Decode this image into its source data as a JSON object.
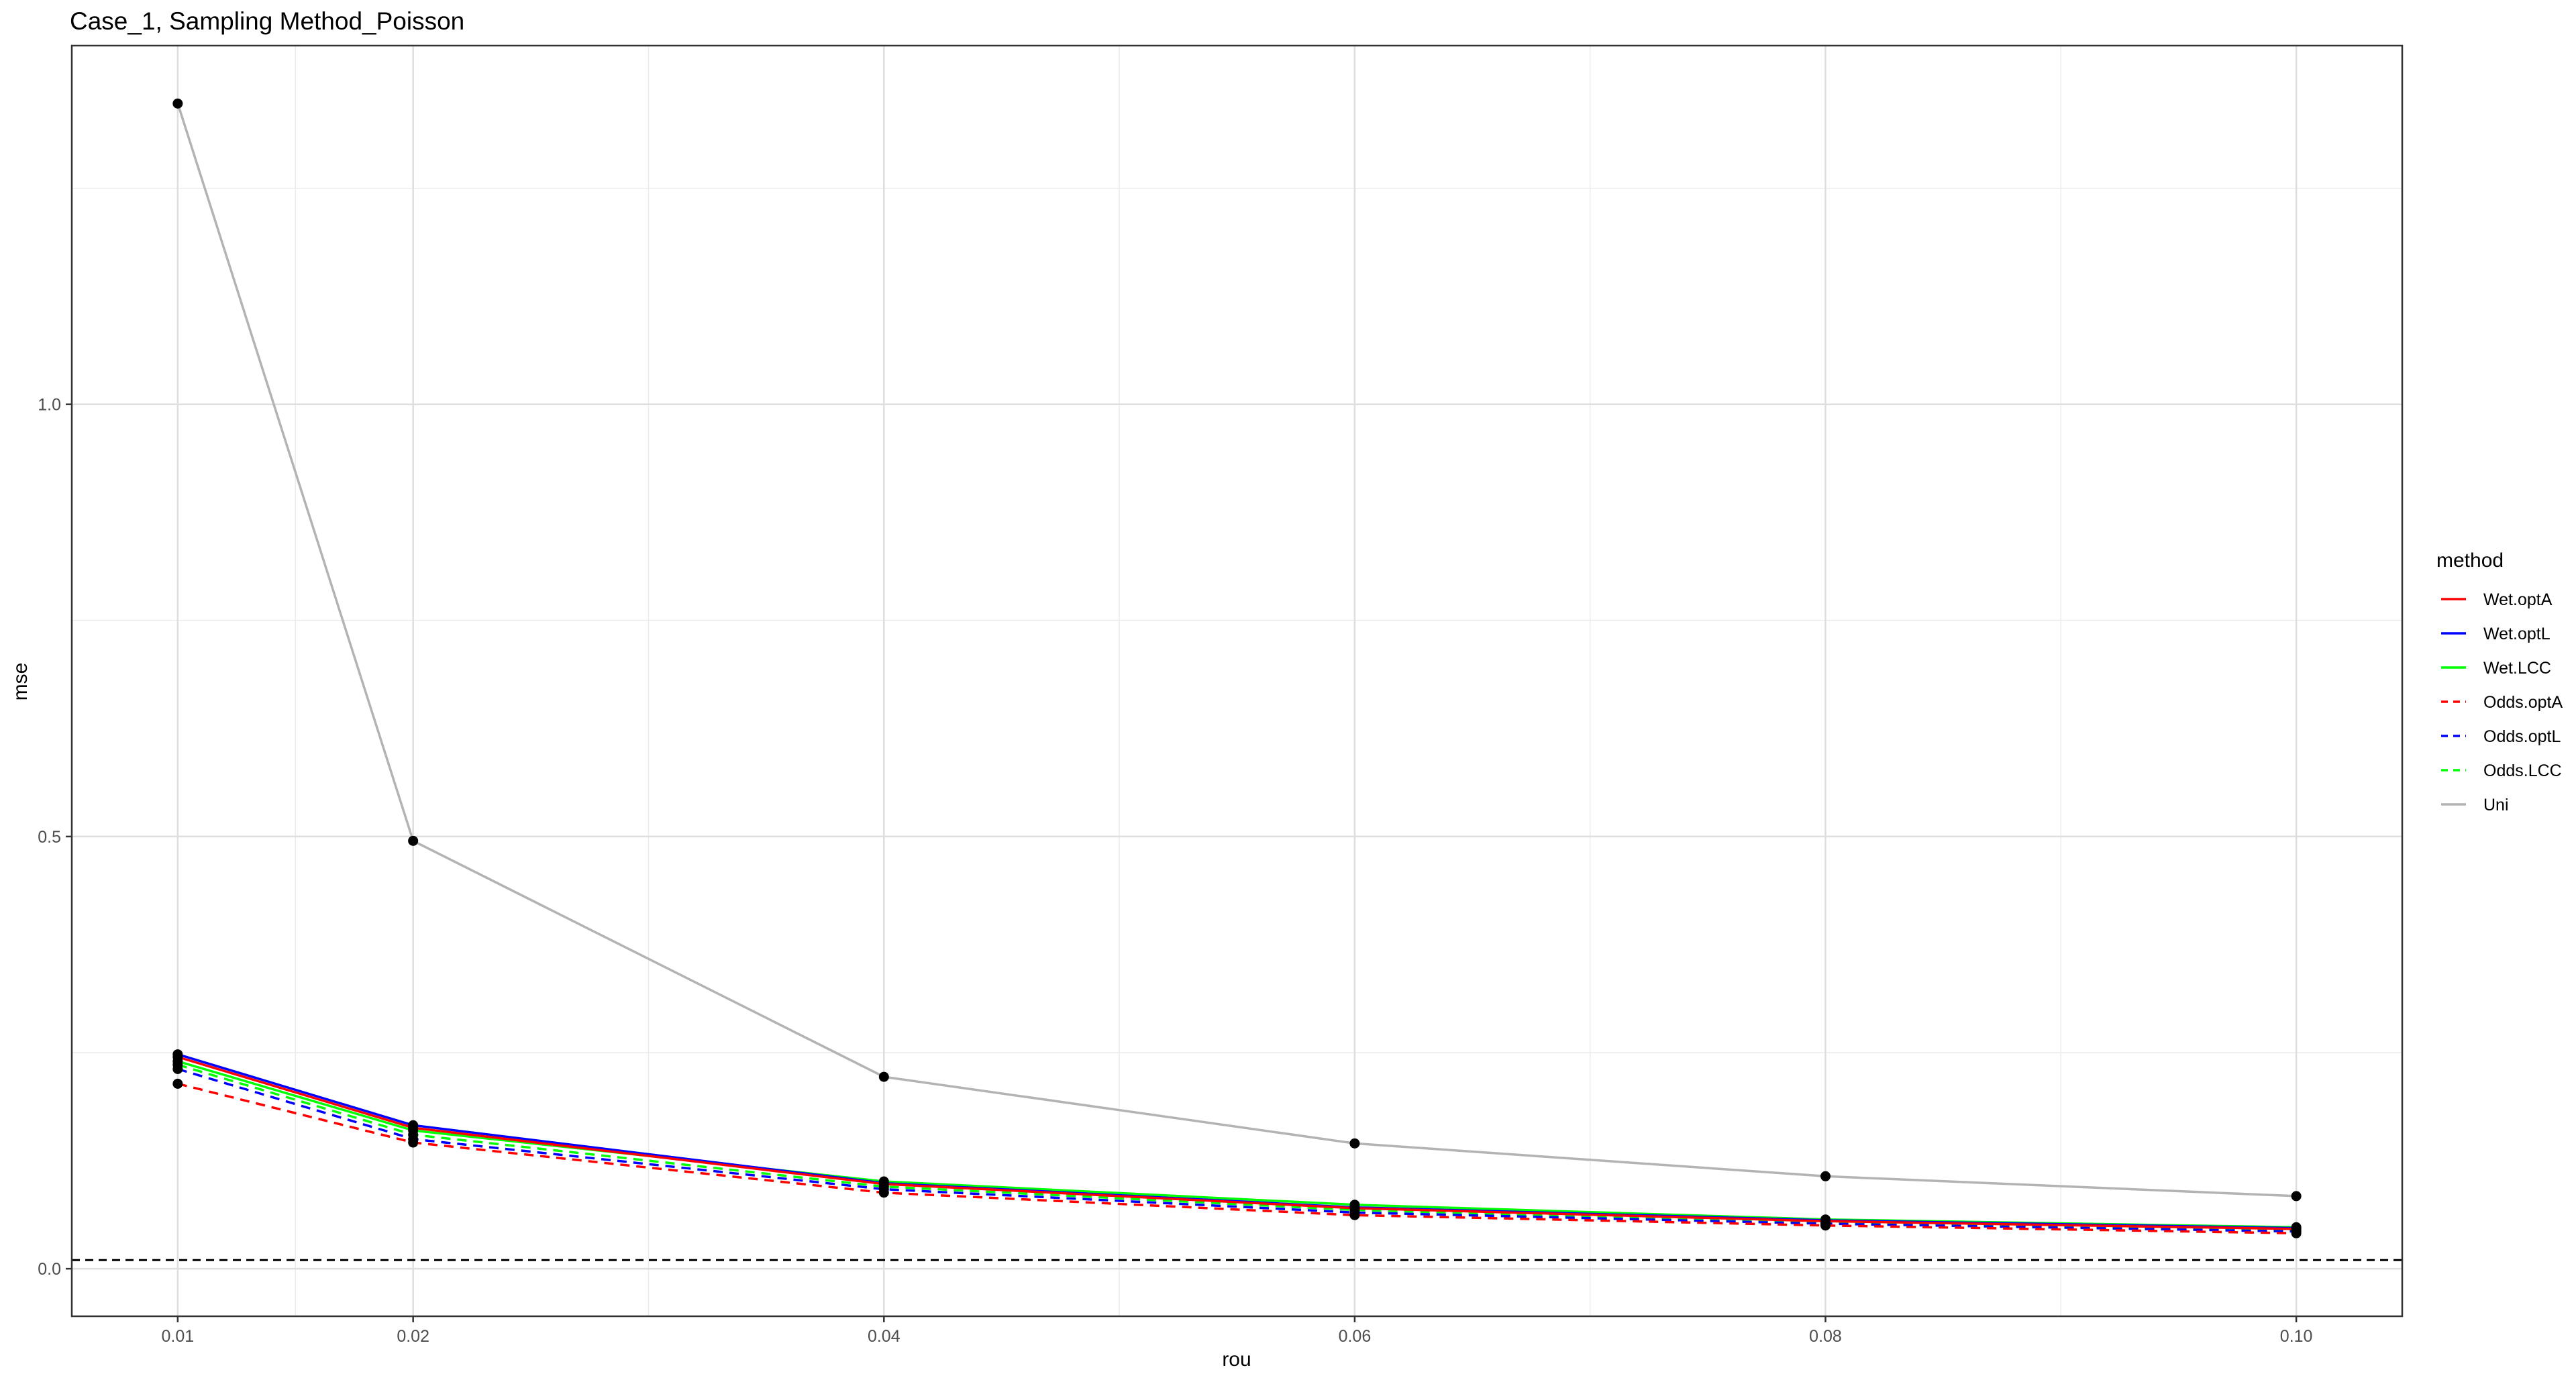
{
  "chart_data": {
    "type": "line",
    "title": "Case_1, Sampling Method_Poisson",
    "xlabel": "rou",
    "ylabel": "mse",
    "x": [
      0.01,
      0.02,
      0.04,
      0.06,
      0.08,
      0.1
    ],
    "x_tick_labels": [
      "0.01",
      "0.02",
      "0.04",
      "0.06",
      "0.08",
      "0.10"
    ],
    "xlim": [
      0.0055,
      0.1045
    ],
    "ylim": [
      -0.055,
      1.415
    ],
    "y_ticks": [
      0.0,
      0.5,
      1.0
    ],
    "y_tick_labels": [
      "0.0",
      "0.5",
      "1.0"
    ],
    "grid": true,
    "reference_line": {
      "y": 0.01,
      "style": "dashed",
      "color": "#000000"
    },
    "legend": {
      "title": "method",
      "position": "right"
    },
    "series": [
      {
        "name": "Wet.optA",
        "color": "#ff0000",
        "dash": false,
        "values": [
          0.245,
          0.163,
          0.098,
          0.07,
          0.055,
          0.046
        ]
      },
      {
        "name": "Wet.optL",
        "color": "#0000ff",
        "dash": false,
        "values": [
          0.248,
          0.166,
          0.099,
          0.071,
          0.056,
          0.047
        ]
      },
      {
        "name": "Wet.LCC",
        "color": "#00ff00",
        "dash": false,
        "values": [
          0.24,
          0.16,
          0.101,
          0.074,
          0.057,
          0.048
        ]
      },
      {
        "name": "Odds.optA",
        "color": "#ff0000",
        "dash": true,
        "values": [
          0.214,
          0.146,
          0.088,
          0.062,
          0.05,
          0.041
        ]
      },
      {
        "name": "Odds.optL",
        "color": "#0000ff",
        "dash": true,
        "values": [
          0.231,
          0.15,
          0.092,
          0.065,
          0.052,
          0.043
        ]
      },
      {
        "name": "Odds.LCC",
        "color": "#00ff00",
        "dash": true,
        "values": [
          0.236,
          0.155,
          0.095,
          0.068,
          0.053,
          0.044
        ]
      },
      {
        "name": "Uni",
        "color": "#b3b3b3",
        "dash": false,
        "values": [
          1.348,
          0.495,
          0.222,
          0.145,
          0.107,
          0.084
        ]
      }
    ]
  }
}
